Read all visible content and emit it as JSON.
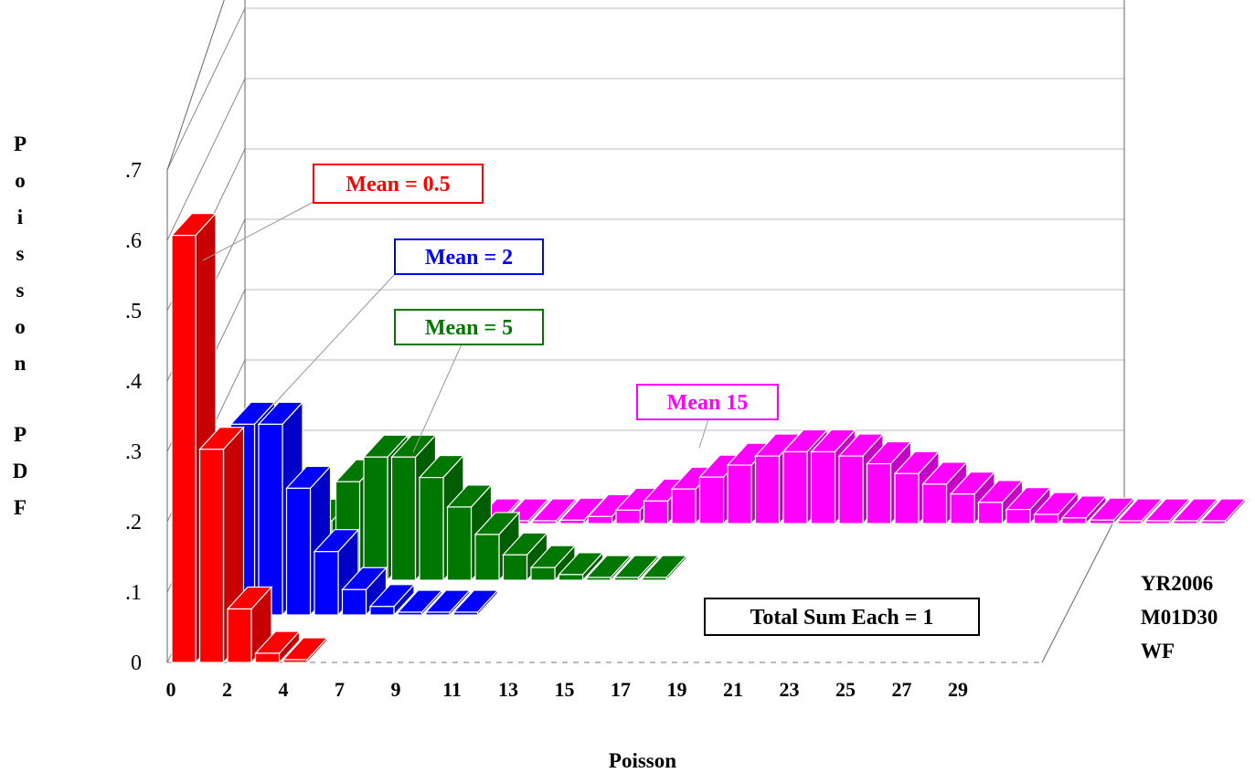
{
  "chart_data": {
    "type": "bar",
    "style": "3d-depth-bars",
    "ylabel": "Poisson PDF",
    "xlabel": "Poisson",
    "ylim": [
      0,
      0.7
    ],
    "yticks": [
      "0",
      ".1",
      ".2",
      ".3",
      ".4",
      ".5",
      ".6",
      ".7"
    ],
    "xtick_labels": [
      "0",
      "2",
      "4",
      "7",
      "9",
      "11",
      "13",
      "15",
      "17",
      "19",
      "21",
      "23",
      "25",
      "27",
      "29"
    ],
    "grid": true,
    "series": [
      {
        "name": "Mean = 0.5",
        "color": "#ff0000",
        "start": 0,
        "values": [
          0.607,
          0.303,
          0.076,
          0.013,
          0.002
        ]
      },
      {
        "name": "Mean = 2",
        "color": "#0000ff",
        "start": 0,
        "values": [
          0.135,
          0.271,
          0.271,
          0.18,
          0.09,
          0.036,
          0.012,
          0.003,
          0.001,
          0.0002
        ]
      },
      {
        "name": "Mean = 5",
        "color": "#007700",
        "start": 0,
        "values": [
          0.007,
          0.034,
          0.084,
          0.14,
          0.175,
          0.175,
          0.146,
          0.104,
          0.065,
          0.036,
          0.018,
          0.008,
          0.003,
          0.001,
          0.0005
        ]
      },
      {
        "name": "Mean 15",
        "color": "#ff00ff",
        "start": 0,
        "values": [
          3e-07,
          5e-06,
          3e-05,
          0.0002,
          0.0006,
          0.0019,
          0.0048,
          0.01,
          0.019,
          0.032,
          0.049,
          0.066,
          0.083,
          0.096,
          0.102,
          0.102,
          0.096,
          0.085,
          0.071,
          0.056,
          0.042,
          0.03,
          0.02,
          0.013,
          0.008,
          0.005,
          0.003,
          0.0015,
          0.0008,
          0.0004
        ]
      }
    ],
    "annotations": [
      "Total Sum Each = 1"
    ],
    "stamp": [
      "YR2006",
      "M01D30",
      "WF"
    ]
  }
}
